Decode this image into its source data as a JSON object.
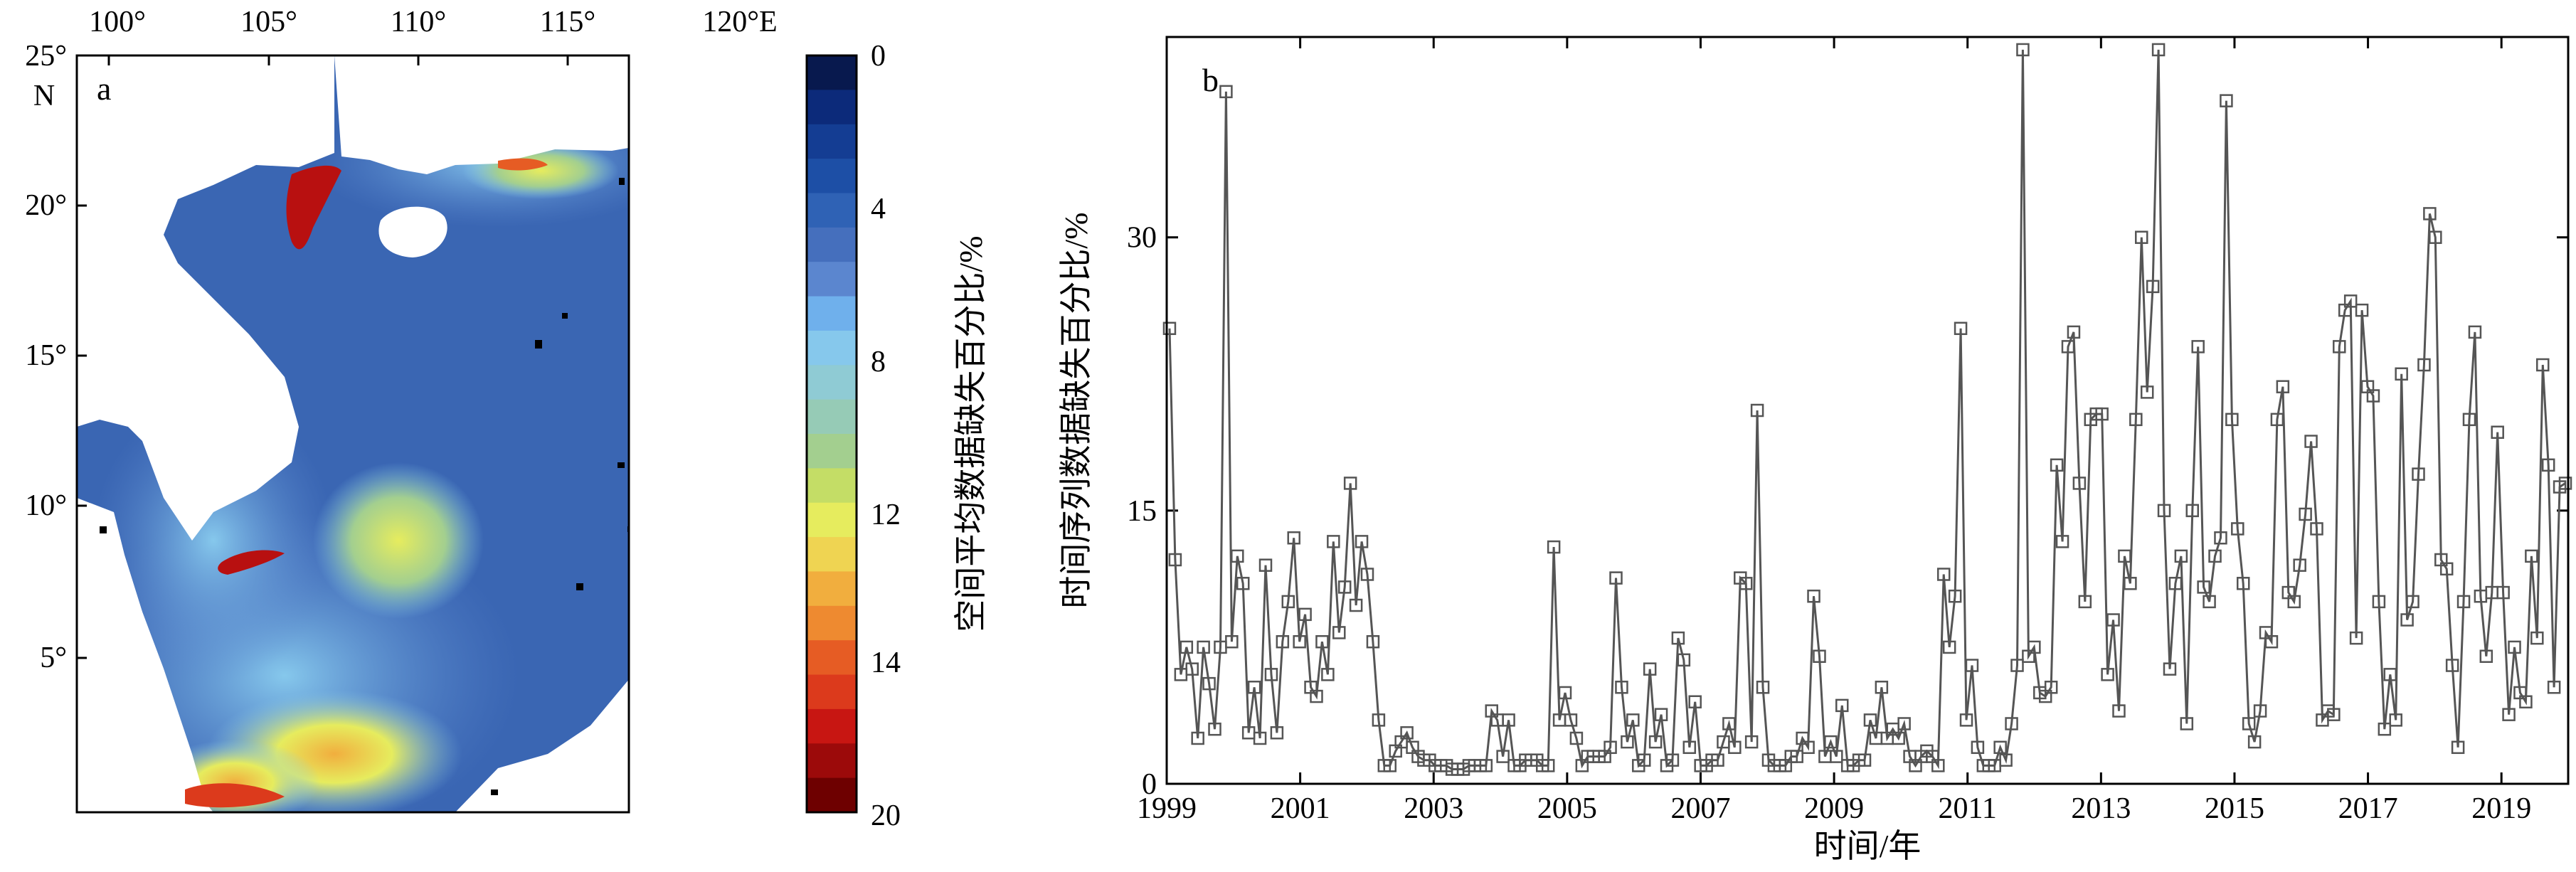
{
  "panel_a": {
    "label": "a",
    "lon_ticks": [
      "100°",
      "105°",
      "110°",
      "115°",
      "120°E"
    ],
    "lat_ticks": [
      "25°",
      "20°",
      "15°",
      "10°",
      "5°"
    ],
    "lat_unit": "N",
    "colorbar_ticks": [
      "0",
      "4",
      "8",
      "12",
      "14",
      "20"
    ],
    "colorbar_label": "空间平均数据缺失百分比/%",
    "colorbar_colors": [
      "#08194e",
      "#0c2a7a",
      "#143d93",
      "#1d4fa6",
      "#2f62b5",
      "#456fbd",
      "#5b86cf",
      "#6fb0ec",
      "#86c8ec",
      "#8fcbd4",
      "#96cbb6",
      "#a3cf8f",
      "#c4dd66",
      "#e6ec5e",
      "#efd452",
      "#f1ae3e",
      "#ee8a30",
      "#e65c24",
      "#dc3a1c",
      "#c81612",
      "#9c0a0a",
      "#6e0000"
    ],
    "colors": {
      "ocean_base": "#3a66b3",
      "land": "#ffffff",
      "missing_pixels": "#000000"
    }
  },
  "chart_data": {
    "type": "line",
    "panel_label": "b",
    "xlabel": "时间/年",
    "ylabel": "时间序列数据缺失百分比/%",
    "xlim": [
      1999.0,
      2020.0
    ],
    "ylim": [
      0,
      41
    ],
    "x_ticks": [
      1999,
      2001,
      2003,
      2005,
      2007,
      2009,
      2011,
      2013,
      2015,
      2017,
      2019
    ],
    "x_tick_labels": [
      "1999",
      "2001",
      "2003",
      "2005",
      "2007",
      "2009",
      "2011",
      "2013",
      "2015",
      "2017",
      "2019"
    ],
    "y_ticks": [
      0,
      15,
      30
    ],
    "y_tick_labels": [
      "0",
      "15",
      "30"
    ],
    "marker": "square",
    "line_color": "#555555",
    "series": [
      {
        "values": [
          25.0,
          12.3,
          6.0,
          7.5,
          6.3,
          2.5,
          7.5,
          5.5,
          3.0,
          7.5,
          38.0,
          7.8,
          12.5,
          11.0,
          2.8,
          5.3,
          2.5,
          12.0,
          6.0,
          2.8,
          7.8,
          10.0,
          13.5,
          7.8,
          9.3,
          5.3,
          4.8,
          7.8,
          6.0,
          13.3,
          8.3,
          10.8,
          16.5,
          9.8,
          13.3,
          11.5,
          7.8,
          3.5,
          1.0,
          1.0,
          1.8,
          2.3,
          2.8,
          2.0,
          1.5,
          1.3,
          1.3,
          1.0,
          1.0,
          1.0,
          0.8,
          0.8,
          0.8,
          1.0,
          1.0,
          1.0,
          1.0,
          4.0,
          3.5,
          1.5,
          3.5,
          1.0,
          1.0,
          1.3,
          1.3,
          1.3,
          1.0,
          1.0,
          13.0,
          3.5,
          5.0,
          3.5,
          2.5,
          1.0,
          1.5,
          1.5,
          1.5,
          1.5,
          2.0,
          11.3,
          5.3,
          2.3,
          3.5,
          1.0,
          1.3,
          6.3,
          2.3,
          3.8,
          1.0,
          1.3,
          8.0,
          6.8,
          2.0,
          4.5,
          1.0,
          1.0,
          1.3,
          1.3,
          2.3,
          3.3,
          2.0,
          11.3,
          11.0,
          2.3,
          20.5,
          5.3,
          1.3,
          1.0,
          1.0,
          1.0,
          1.5,
          1.5,
          2.5,
          2.0,
          10.3,
          7.0,
          1.5,
          2.3,
          1.5,
          4.3,
          1.0,
          1.0,
          1.3,
          1.3,
          3.5,
          2.5,
          5.3,
          2.5,
          3.0,
          2.5,
          3.3,
          1.5,
          1.0,
          1.5,
          1.8,
          1.5,
          1.0,
          11.5,
          7.5,
          10.3,
          25.0,
          3.5,
          6.5,
          2.0,
          1.0,
          1.0,
          1.0,
          2.0,
          1.3,
          3.3,
          6.5,
          40.3,
          7.0,
          7.5,
          5.0,
          4.8,
          5.3,
          17.5,
          13.3,
          24.0,
          24.8,
          16.5,
          10.0,
          20.0,
          20.3,
          20.3,
          6.0,
          9.0,
          4.0,
          12.5,
          11.0,
          20.0,
          30.0,
          21.5,
          27.3,
          40.3,
          15.0,
          6.3,
          11.0,
          12.5,
          3.3,
          15.0,
          24.0,
          10.8,
          10.0,
          12.5,
          13.5,
          37.5,
          20.0,
          14.0,
          11.0,
          3.3,
          2.3,
          4.0,
          8.3,
          7.8,
          20.0,
          21.8,
          10.5,
          10.0,
          12.0,
          14.8,
          18.8,
          14.0,
          3.5,
          4.0,
          3.8,
          24.0,
          26.0,
          26.5,
          8.0,
          26.0,
          21.8,
          21.3,
          10.0,
          3.0,
          6.0,
          3.5,
          22.5,
          9.0,
          10.0,
          17.0,
          23.0,
          31.3,
          30.0,
          12.3,
          11.8,
          6.5,
          2.0,
          10.0,
          20.0,
          24.8,
          10.3,
          7.0,
          10.5,
          19.3,
          10.5,
          3.8,
          7.5,
          5.0,
          4.5,
          12.5,
          8.0,
          23.0,
          17.5,
          5.3,
          16.3,
          16.5
        ]
      }
    ]
  }
}
